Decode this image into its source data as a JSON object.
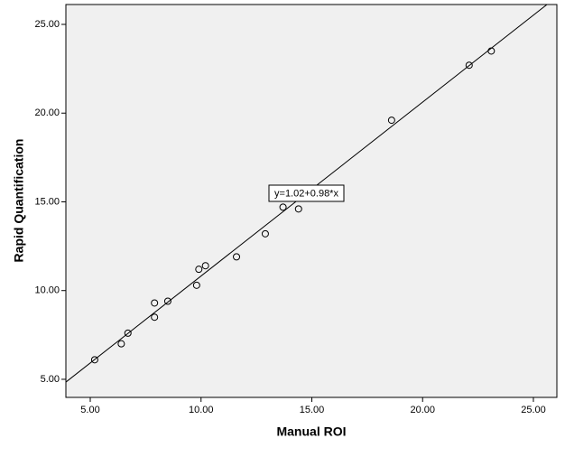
{
  "chart_data": {
    "type": "scatter",
    "x_label": "Manual ROI",
    "y_label": "Rapid Quantification",
    "x": [
      5.2,
      6.4,
      6.7,
      7.9,
      7.9,
      8.5,
      9.8,
      9.9,
      10.2,
      11.6,
      12.9,
      13.7,
      14.4,
      18.6,
      22.1,
      23.1
    ],
    "values": [
      6.1,
      7.0,
      7.6,
      9.3,
      8.5,
      9.4,
      10.3,
      11.2,
      11.4,
      11.9,
      13.2,
      14.7,
      14.6,
      19.6,
      22.7,
      23.5
    ],
    "color": "#000000",
    "xlim": [
      3.9,
      26.06
    ],
    "ylim": [
      3.98,
      26.12
    ],
    "xticks": [
      {
        "value": 5,
        "label": "5.00"
      },
      {
        "value": 10,
        "label": "10.00"
      },
      {
        "value": 15,
        "label": "15.00"
      },
      {
        "value": 20,
        "label": "20.00"
      },
      {
        "value": 25,
        "label": "25.00"
      }
    ],
    "yticks": [
      {
        "value": 5,
        "label": "5.00"
      },
      {
        "value": 10,
        "label": "10.00"
      },
      {
        "value": 15,
        "label": "15.00"
      },
      {
        "value": 20,
        "label": "20.00"
      },
      {
        "value": 25,
        "label": "25.00"
      }
    ],
    "regression": {
      "label": "y=1.02+0.98*x",
      "intercept": 1.02,
      "slope": 0.98
    }
  }
}
